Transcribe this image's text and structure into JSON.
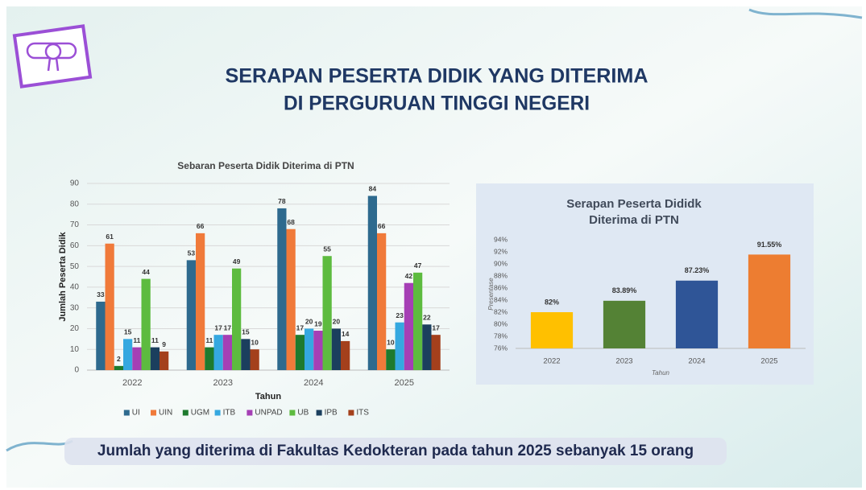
{
  "header": {
    "title_lines": [
      "SERAPAN PESERTA DIDIK YANG DITERIMA",
      "DI PERGURUAN TINGGI NEGERI"
    ]
  },
  "chart_data": [
    {
      "type": "bar",
      "title": "Sebaran Peserta Didik Diterima di PTN",
      "x_label": "Tahun",
      "y_label": "Jumlah Peserta Didik",
      "categories": [
        "2022",
        "2023",
        "2024",
        "2025"
      ],
      "series": [
        {
          "name": "UI",
          "color": "#2e6a8e",
          "values": [
            33,
            53,
            78,
            84
          ]
        },
        {
          "name": "UIN",
          "color": "#f07a3a",
          "values": [
            61,
            66,
            68,
            66
          ]
        },
        {
          "name": "UGM",
          "color": "#1e7a2e",
          "values": [
            2,
            11,
            17,
            10
          ]
        },
        {
          "name": "ITB",
          "color": "#35a8e0",
          "values": [
            15,
            17,
            20,
            23
          ]
        },
        {
          "name": "UNPAD",
          "color": "#a53fb5",
          "values": [
            11,
            17,
            19,
            42
          ]
        },
        {
          "name": "UB",
          "color": "#5dbb3f",
          "values": [
            44,
            49,
            55,
            47
          ]
        },
        {
          "name": "IPB",
          "color": "#1b3f5e",
          "values": [
            11,
            15,
            20,
            22
          ]
        },
        {
          "name": "ITS",
          "color": "#a4401c",
          "values": [
            9,
            10,
            14,
            17
          ]
        }
      ],
      "ylim": [
        0,
        90
      ],
      "yticks": [
        0,
        10,
        20,
        30,
        40,
        50,
        60,
        70,
        80,
        90
      ],
      "grid": true,
      "legend": "bottom"
    },
    {
      "type": "bar",
      "title": "Serapan Peserta Dididk Diterima di PTN",
      "x_label": "Tahun",
      "y_label": "Presentase",
      "categories": [
        "2022",
        "2023",
        "2024",
        "2025"
      ],
      "values": [
        82,
        83.89,
        87.23,
        91.55
      ],
      "value_labels": [
        "82%",
        "83.89%",
        "87.23%",
        "91.55%"
      ],
      "colors": [
        "#ffc000",
        "#548235",
        "#2f5597",
        "#ed7d31"
      ],
      "ylim": [
        76,
        94
      ],
      "yticks": [
        {
          "value": 76,
          "label": "76%"
        },
        {
          "value": 78,
          "label": "78%"
        },
        {
          "value": 80,
          "label": "80%"
        },
        {
          "value": 82,
          "label": "82%"
        },
        {
          "value": 84,
          "label": "84%"
        },
        {
          "value": 86,
          "label": "86%"
        },
        {
          "value": 88,
          "label": "88%"
        },
        {
          "value": 90,
          "label": "90%"
        },
        {
          "value": 92,
          "label": "92%"
        },
        {
          "value": 94,
          "label": "94%"
        }
      ],
      "grid": false
    }
  ],
  "footer": "Jumlah yang diterima di Fakultas Kedokteran pada tahun 2025 sebanyak 15 orang"
}
